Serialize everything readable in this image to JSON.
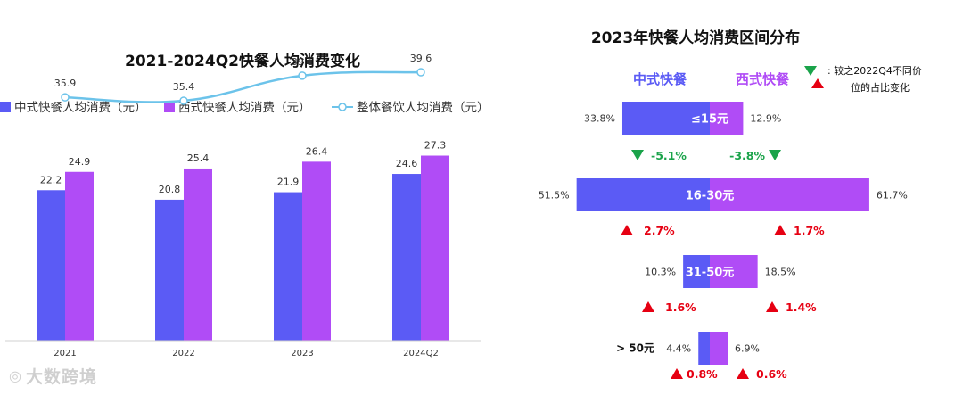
{
  "chart_data": [
    {
      "type": "bar",
      "title": "2021-2024Q2快餐人均消费变化",
      "categories": [
        "2021",
        "2022",
        "2023",
        "2024Q2"
      ],
      "series": [
        {
          "name": "中式快餐人均消费（元）",
          "kind": "bar",
          "color": "#5b5bf5",
          "values": [
            22.2,
            20.8,
            21.9,
            24.6
          ]
        },
        {
          "name": "西式快餐人均消费（元）",
          "kind": "bar",
          "color": "#b04cf6",
          "values": [
            24.9,
            25.4,
            26.4,
            27.3
          ]
        },
        {
          "name": "整体餐饮人均消费（元）",
          "kind": "line",
          "color": "#6cc3ea",
          "values": [
            35.9,
            35.4,
            39.1,
            39.6
          ]
        }
      ],
      "ylim": [
        0,
        45
      ]
    },
    {
      "type": "bar",
      "title": "2023年快餐人均消费区间分布",
      "column_headers": {
        "left": "中式快餐",
        "right": "西式快餐"
      },
      "note": "较之2022Q4不同价位的占比变化",
      "categories": [
        "≤15元",
        "16-30元",
        "31-50元",
        "> 50元"
      ],
      "series": [
        {
          "name": "中式快餐",
          "color": "#5b5bf5",
          "values": [
            33.8,
            51.5,
            10.3,
            4.4
          ],
          "labels": [
            "33.8%",
            "51.5%",
            "10.3%",
            "4.4%"
          ]
        },
        {
          "name": "西式快餐",
          "color": "#b04cf6",
          "values": [
            12.9,
            61.7,
            18.5,
            6.9
          ],
          "labels": [
            "12.9%",
            "61.7%",
            "18.5%",
            "6.9%"
          ]
        }
      ],
      "changes": {
        "中式快餐": [
          {
            "value": -5.1,
            "label": "-5.1%"
          },
          {
            "value": 2.7,
            "label": "2.7%"
          },
          {
            "value": 1.6,
            "label": "1.6%"
          },
          {
            "value": 0.8,
            "label": "0.8%"
          }
        ],
        "西式快餐": [
          {
            "value": -3.8,
            "label": "-3.8%"
          },
          {
            "value": 1.7,
            "label": "1.7%"
          },
          {
            "value": 1.4,
            "label": "1.4%"
          },
          {
            "value": 0.6,
            "label": "0.6%"
          }
        ]
      },
      "colors": {
        "up": "#e60012",
        "down": "#1aa34a"
      }
    }
  ],
  "watermark": {
    "text": "大数跨境"
  }
}
